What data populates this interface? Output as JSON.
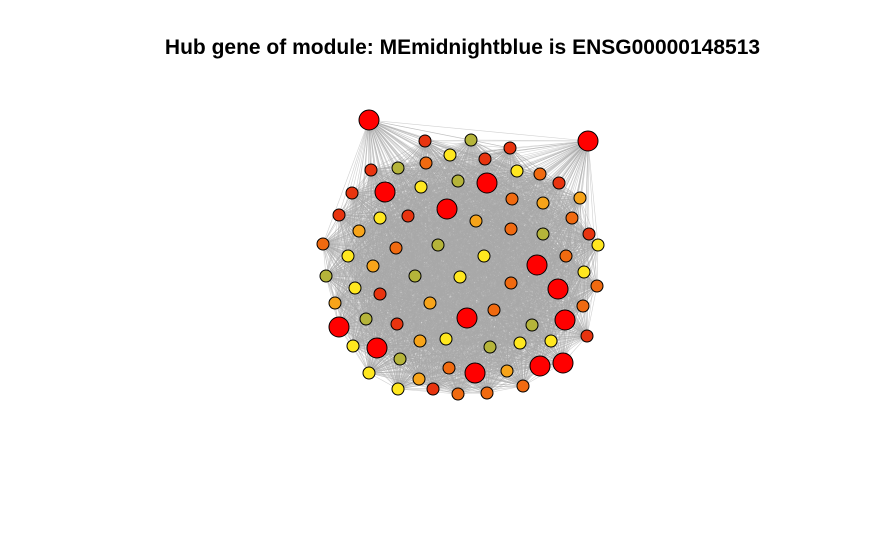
{
  "plot": {
    "title": "Hub gene of module: MEmidnightblue is ENSG00000148513"
  },
  "colors": {
    "background": "#ffffff",
    "edge": "#a9a9a9",
    "node_outline": "#000000",
    "hub": "#ff0000",
    "high": "#e8340f",
    "mid_high": "#f06a10",
    "mid": "#f7a41a",
    "olive": "#b5b43a",
    "low": "#ffe71f"
  },
  "network": {
    "node_count": 76,
    "layout": "dense circular cluster with fully connected gray edges"
  }
}
